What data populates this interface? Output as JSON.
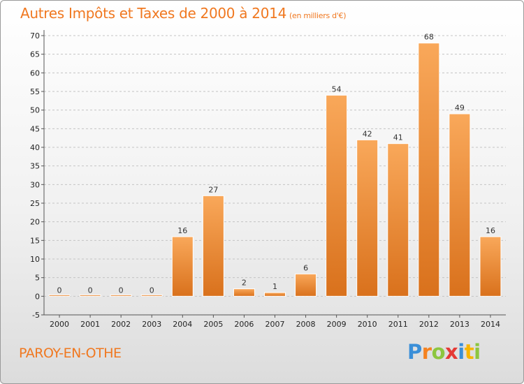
{
  "title": "Autres Impôts et Taxes de 2000 à 2014",
  "subtitle": "(en milliers d'€)",
  "commune": "PAROY-EN-OTHE",
  "logo": {
    "text": "Proxiti"
  },
  "colors": {
    "bar_light": "#f9a85a",
    "bar_dark": "#d9711c",
    "title": "#f07820"
  },
  "chart_data": {
    "type": "bar",
    "categories": [
      "2000",
      "2001",
      "2002",
      "2003",
      "2004",
      "2005",
      "2006",
      "2007",
      "2008",
      "2009",
      "2010",
      "2011",
      "2012",
      "2013",
      "2014"
    ],
    "values": [
      0,
      0,
      0,
      0,
      16,
      27,
      2,
      1,
      6,
      54,
      42,
      41,
      68,
      49,
      16
    ],
    "ylim": [
      -5,
      70
    ],
    "yticks": [
      -5,
      0,
      5,
      10,
      15,
      20,
      25,
      30,
      35,
      40,
      45,
      50,
      55,
      60,
      65,
      70
    ],
    "grid": "dashed-horizontal",
    "legend": "none"
  }
}
